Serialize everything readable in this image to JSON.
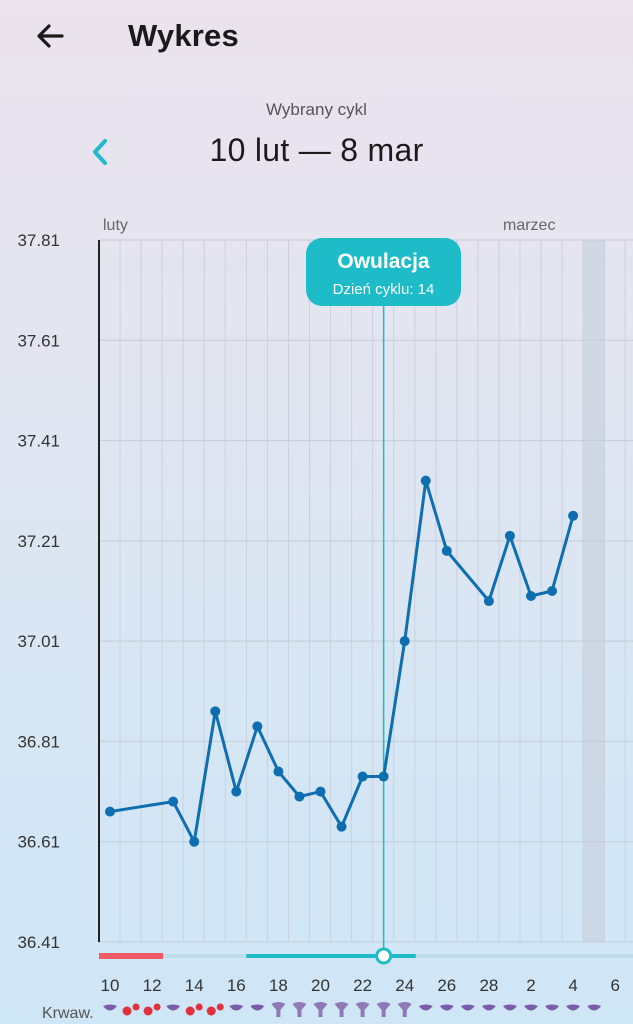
{
  "header": {
    "title": "Wykres",
    "back_icon": "arrow-left-icon"
  },
  "cycle_selector": {
    "label": "Wybrany cykl",
    "range": "10 lut — 8 mar",
    "prev_icon": "chevron-left-icon"
  },
  "colors": {
    "accent": "#1dbcc8",
    "line": "#0e6eaf",
    "period": "#ef5a67",
    "fertile": "#1dbcc8",
    "bleeding": "#e0313f",
    "mucus": "#7a5da8"
  },
  "chart_data": {
    "type": "line",
    "month_labels": [
      "luty",
      "marzec"
    ],
    "y_ticks": [
      37.81,
      37.61,
      37.41,
      37.21,
      37.01,
      36.81,
      36.61,
      36.41
    ],
    "ylim": [
      36.41,
      37.81
    ],
    "x_ticks": [
      "10",
      "12",
      "14",
      "16",
      "18",
      "20",
      "22",
      "24",
      "26",
      "28",
      "2",
      "4",
      "6"
    ],
    "days": 30,
    "ovulation": {
      "title": "Owulacja",
      "subtitle": "Dzień cyklu: 14",
      "day_index": 13
    },
    "today_index": 23,
    "period_days": [
      0,
      2
    ],
    "fertile_days": [
      7,
      14
    ],
    "series": [
      {
        "points": [
          {
            "d": 0,
            "v": 36.67
          },
          {
            "d": 3,
            "v": 36.69
          },
          {
            "d": 4,
            "v": 36.61
          },
          {
            "d": 5,
            "v": 36.87
          },
          {
            "d": 6,
            "v": 36.71
          },
          {
            "d": 7,
            "v": 36.84
          },
          {
            "d": 8,
            "v": 36.75
          },
          {
            "d": 9,
            "v": 36.7
          },
          {
            "d": 10,
            "v": 36.71
          },
          {
            "d": 11,
            "v": 36.64
          },
          {
            "d": 12,
            "v": 36.74
          },
          {
            "d": 13,
            "v": 36.74
          },
          {
            "d": 14,
            "v": 37.01
          },
          {
            "d": 15,
            "v": 37.33
          },
          {
            "d": 16,
            "v": 37.19
          },
          {
            "d": 18,
            "v": 37.09
          },
          {
            "d": 19,
            "v": 37.22
          },
          {
            "d": 20,
            "v": 37.1
          },
          {
            "d": 21,
            "v": 37.11
          },
          {
            "d": 22,
            "v": 37.26
          }
        ]
      }
    ],
    "bleeding_label": "Krwaw.",
    "bleeding_row": [
      "mucus",
      "bleed",
      "bleed",
      "mucus",
      "bleed",
      "bleed",
      "mucus",
      "mucus",
      "cervix",
      "cervix",
      "cervix",
      "cervix",
      "cervix",
      "cervix",
      "cervix",
      "mucus",
      "mucus",
      "mucus",
      "mucus",
      "mucus",
      "mucus",
      "mucus",
      "mucus",
      "mucus"
    ]
  }
}
